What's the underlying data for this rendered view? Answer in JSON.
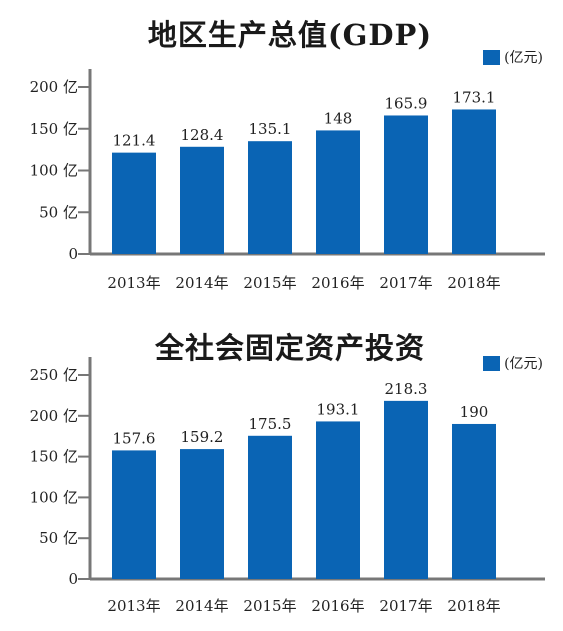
{
  "chart_data": [
    {
      "type": "bar",
      "title": "地区生产总值(GDP)",
      "categories": [
        "2013年",
        "2014年",
        "2015年",
        "2016年",
        "2017年",
        "2018年"
      ],
      "series": [
        {
          "name": "(亿元)",
          "values": [
            121.4,
            128.4,
            135.1,
            148,
            165.9,
            173.1
          ]
        }
      ],
      "data_labels": [
        "121.4",
        "128.4",
        "135.1",
        "148",
        "165.9",
        "173.1"
      ],
      "y_ticks": [
        {
          "value": 0,
          "label": "0"
        },
        {
          "value": 50,
          "label": "50 亿"
        },
        {
          "value": 100,
          "label": "100 亿"
        },
        {
          "value": 150,
          "label": "150 亿"
        },
        {
          "value": 200,
          "label": "200 亿"
        }
      ],
      "ylim": [
        0,
        200
      ],
      "xlabel": "",
      "ylabel": "",
      "grid": false,
      "legend_position": "top-right",
      "bar_color": "#0a64b4"
    },
    {
      "type": "bar",
      "title": "全社会固定资产投资",
      "categories": [
        "2013年",
        "2014年",
        "2015年",
        "2016年",
        "2017年",
        "2018年"
      ],
      "series": [
        {
          "name": "(亿元)",
          "values": [
            157.6,
            159.2,
            175.5,
            193.1,
            218.3,
            190
          ]
        }
      ],
      "data_labels": [
        "157.6",
        "159.2",
        "175.5",
        "193.1",
        "218.3",
        "190"
      ],
      "y_ticks": [
        {
          "value": 0,
          "label": "0"
        },
        {
          "value": 50,
          "label": "50 亿"
        },
        {
          "value": 100,
          "label": "100 亿"
        },
        {
          "value": 150,
          "label": "150 亿"
        },
        {
          "value": 200,
          "label": "200 亿"
        },
        {
          "value": 250,
          "label": "250 亿"
        }
      ],
      "ylim": [
        0,
        250
      ],
      "xlabel": "",
      "ylabel": "",
      "grid": false,
      "legend_position": "top-right",
      "bar_color": "#0a64b4"
    }
  ]
}
